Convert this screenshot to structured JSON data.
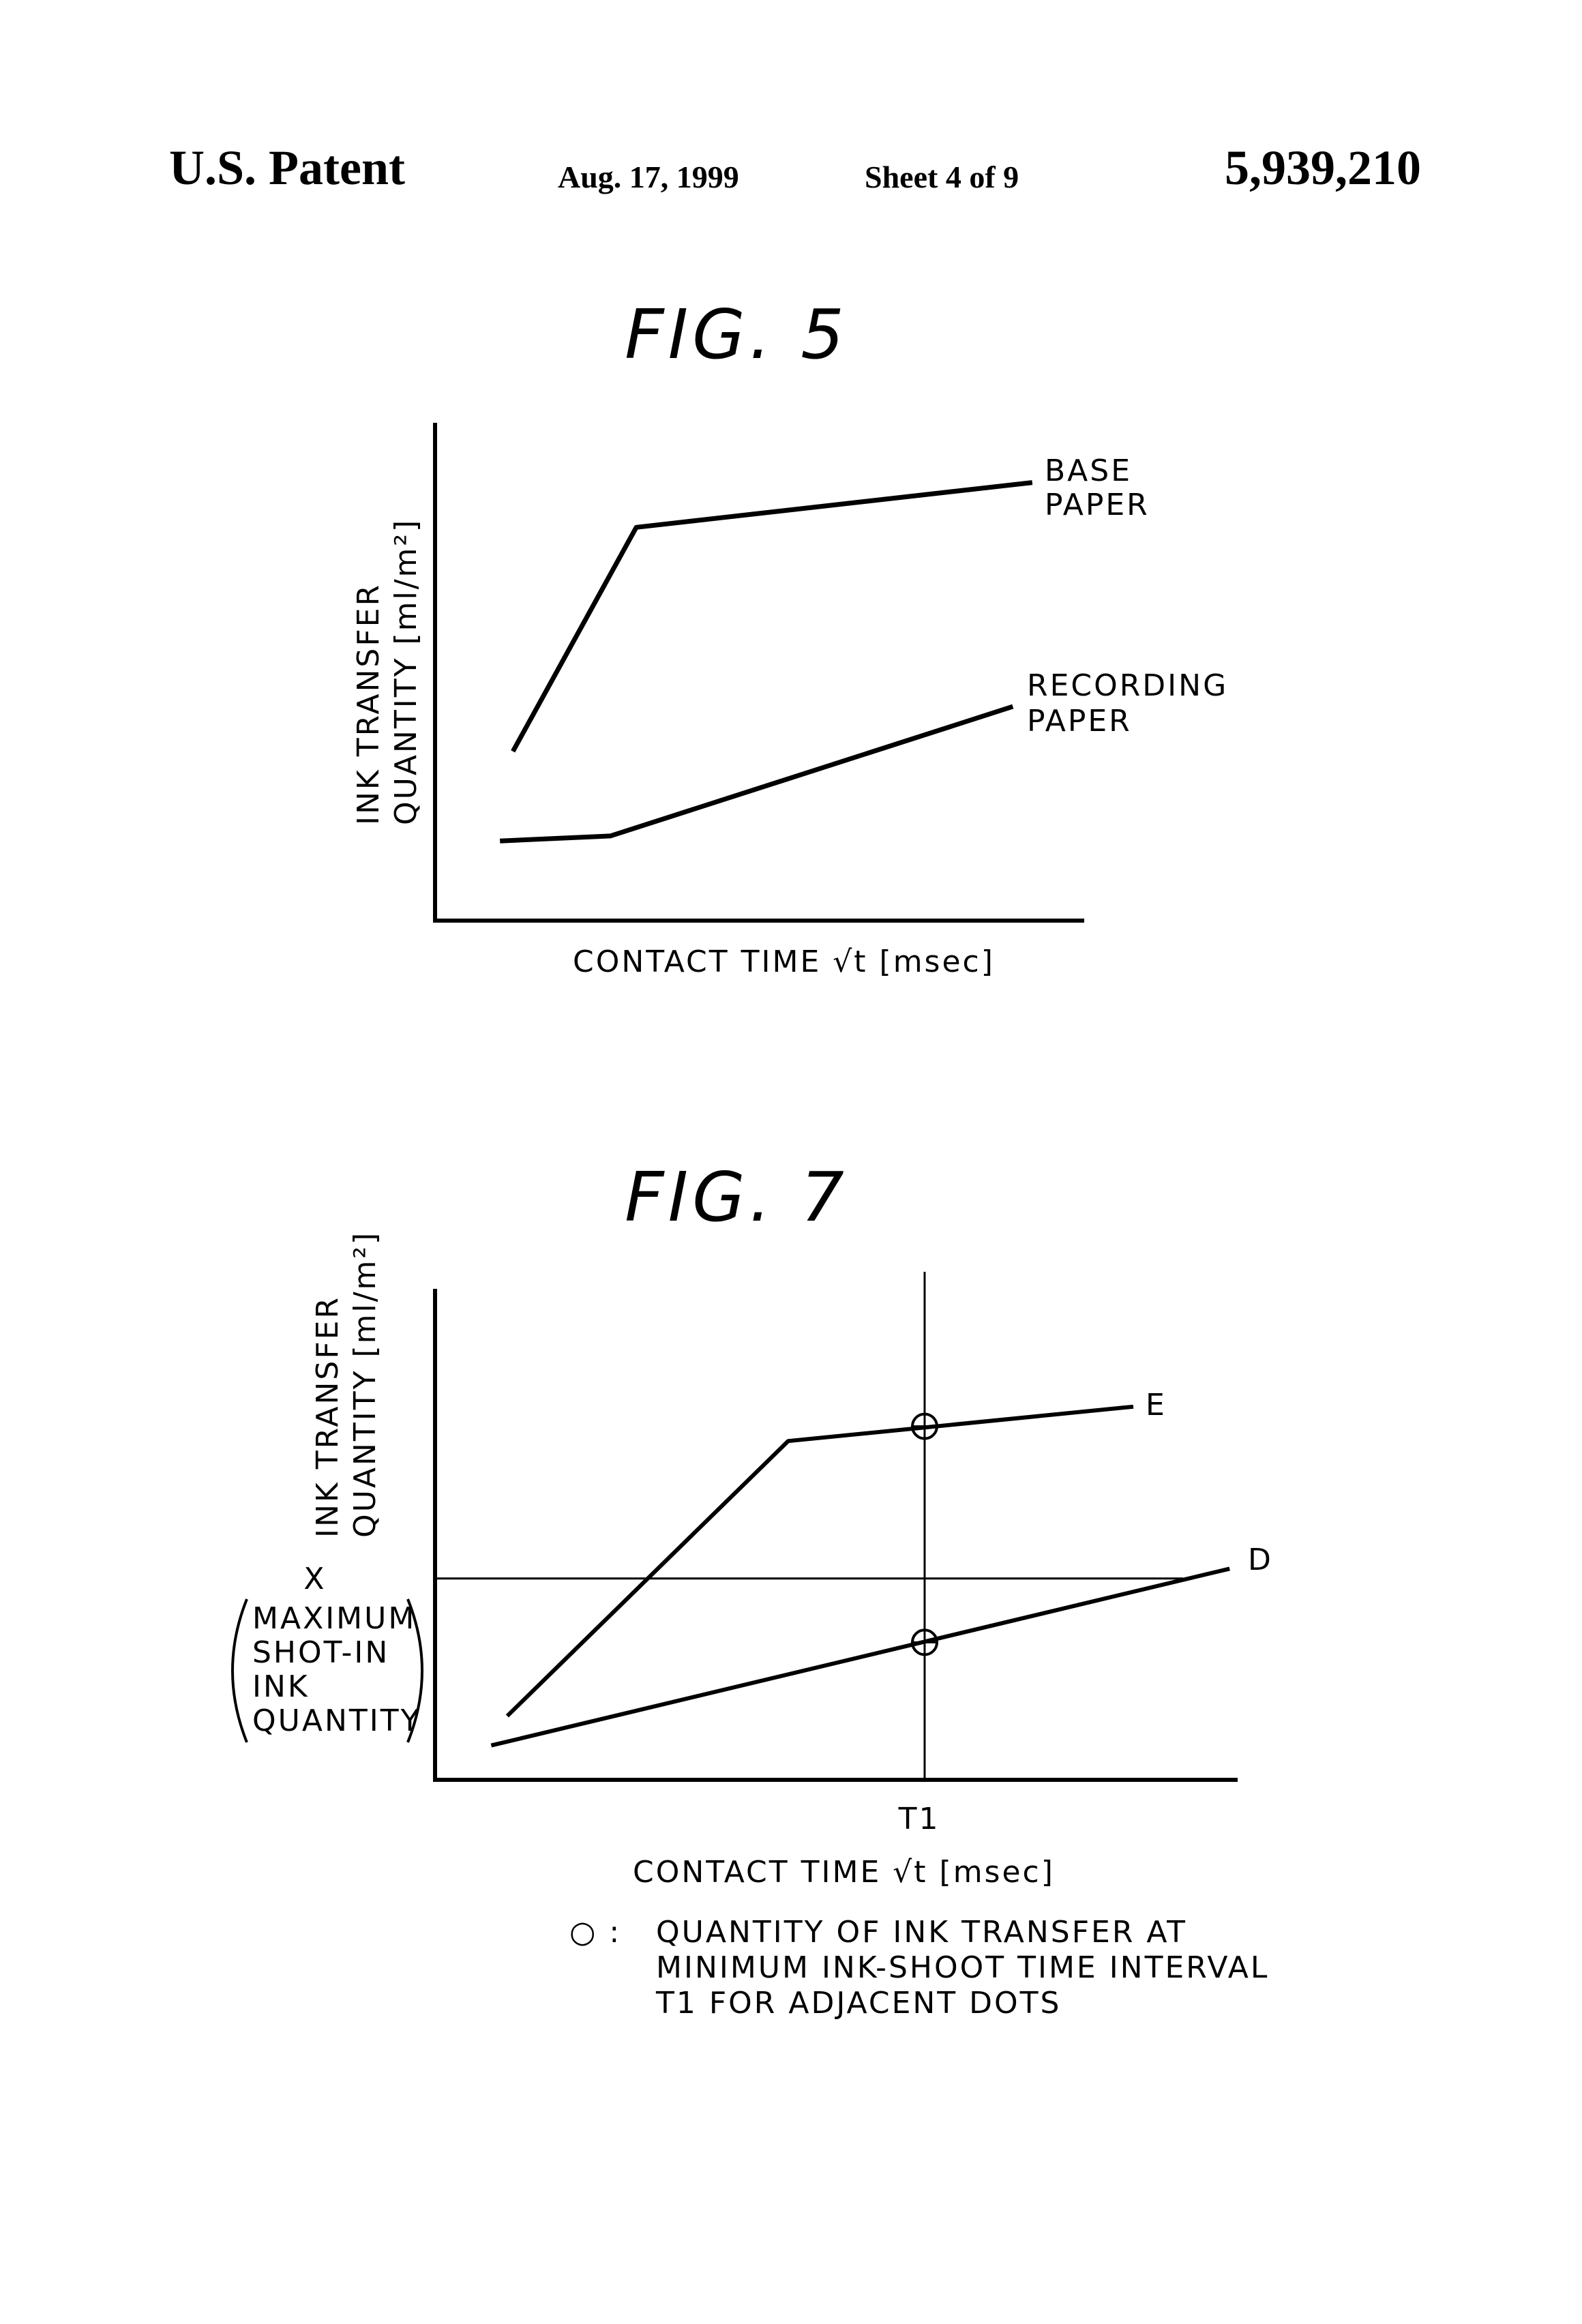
{
  "header": {
    "left": "U.S. Patent",
    "date": "Aug. 17, 1999",
    "sheet": "Sheet 4 of 9",
    "number": "5,939,210"
  },
  "fig5": {
    "title": "FIG. 5",
    "ylabel_line1": "INK TRANSFER",
    "ylabel_line2": "QUANTITY [ml/m²]",
    "xlabel": "CONTACT TIME √t  [msec]",
    "curve_labels": {
      "base_line1": "BASE",
      "base_line2": "PAPER",
      "rec_line1": "RECORDING",
      "rec_line2": "PAPER"
    }
  },
  "fig7": {
    "title": "FIG. 7",
    "ylabel_line1": "INK TRANSFER",
    "ylabel_line2": "QUANTITY [ml/m²]",
    "xlabel": "CONTACT TIME √t  [msec]",
    "x_label": "X",
    "bracket_lines": [
      "MAXIMUM",
      "SHOT-IN",
      "INK",
      "QUANTITY"
    ],
    "t1_label": "T1",
    "label_e": "E",
    "label_d": "D",
    "legend_symbol": "○ :",
    "legend_lines": [
      "QUANTITY OF INK TRANSFER AT",
      "MINIMUM INK-SHOOT TIME INTERVAL",
      "T1 FOR ADJACENT DOTS"
    ]
  },
  "chart_data": [
    {
      "type": "line",
      "title": "FIG. 5",
      "xlabel": "CONTACT TIME √t  [msec]",
      "ylabel": "INK TRANSFER QUANTITY [ml/m²]",
      "axis_ticks": "none",
      "series": [
        {
          "name": "BASE PAPER",
          "points": [
            [
              0.12,
              0.34
            ],
            [
              0.31,
              0.79
            ],
            [
              0.92,
              0.88
            ]
          ]
        },
        {
          "name": "RECORDING PAPER",
          "points": [
            [
              0.1,
              0.16
            ],
            [
              0.27,
              0.17
            ],
            [
              0.89,
              0.43
            ]
          ]
        }
      ]
    },
    {
      "type": "line",
      "title": "FIG. 7",
      "xlabel": "CONTACT TIME √t  [msec]",
      "ylabel": "INK TRANSFER QUANTITY [ml/m²]",
      "axis_ticks": "none",
      "series": [
        {
          "name": "E",
          "points": [
            [
              0.09,
              0.13
            ],
            [
              0.44,
              0.69
            ],
            [
              0.87,
              0.76
            ]
          ]
        },
        {
          "name": "D",
          "points": [
            [
              0.07,
              0.07
            ],
            [
              0.99,
              0.43
            ]
          ]
        }
      ],
      "reference_lines": [
        {
          "orientation": "horizontal",
          "label": "X",
          "value": 0.41
        },
        {
          "orientation": "vertical",
          "label": "T1",
          "value": 0.61
        }
      ],
      "markers": [
        {
          "series": "E",
          "x": 0.61,
          "y": 0.72
        },
        {
          "series": "D",
          "x": 0.61,
          "y": 0.28
        }
      ]
    }
  ]
}
